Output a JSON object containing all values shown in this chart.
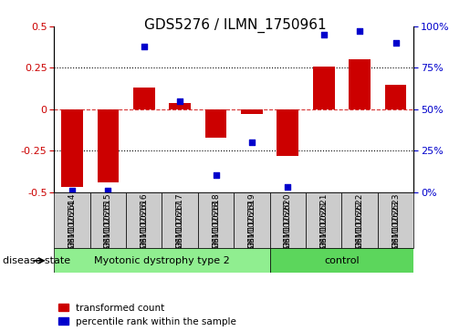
{
  "title": "GDS5276 / ILMN_1750961",
  "samples": [
    "GSM1102614",
    "GSM1102615",
    "GSM1102616",
    "GSM1102617",
    "GSM1102618",
    "GSM1102619",
    "GSM1102620",
    "GSM1102621",
    "GSM1102622",
    "GSM1102623"
  ],
  "transformed_count": [
    -0.47,
    -0.44,
    0.13,
    0.04,
    -0.17,
    -0.03,
    -0.28,
    0.26,
    0.3,
    0.15
  ],
  "percentile_rank": [
    1,
    1,
    88,
    55,
    10,
    30,
    3,
    95,
    97,
    90
  ],
  "groups": [
    {
      "label": "Myotonic dystrophy type 2",
      "start": 0,
      "end": 6,
      "color": "#90EE90"
    },
    {
      "label": "control",
      "start": 6,
      "end": 10,
      "color": "#5CD65C"
    }
  ],
  "disease_state_label": "disease state",
  "left_axis_color": "#CC0000",
  "right_axis_color": "#0000CC",
  "bar_color": "#CC0000",
  "dot_color": "#0000CC",
  "ylim_left": [
    -0.5,
    0.5
  ],
  "ylim_right": [
    0,
    100
  ],
  "yticks_left": [
    -0.5,
    -0.25,
    0.0,
    0.25,
    0.5
  ],
  "yticks_right": [
    0,
    25,
    50,
    75,
    100
  ],
  "hlines_dotted": [
    0.25,
    -0.25
  ],
  "hline_zero_color": "#CC0000",
  "legend_red_label": "transformed count",
  "legend_blue_label": "percentile rank within the sample",
  "sample_cell_color": "#CCCCCC",
  "n_disease": 6,
  "n_control": 4
}
